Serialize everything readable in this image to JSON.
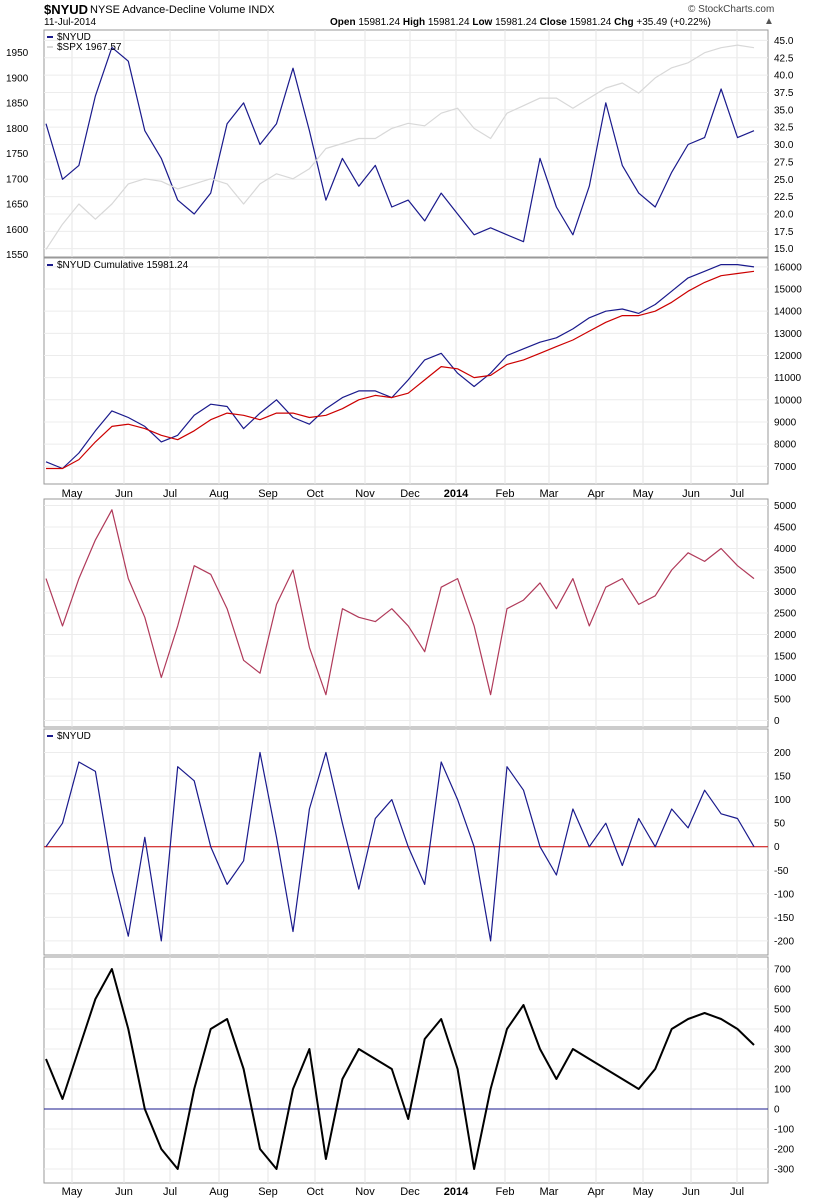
{
  "header": {
    "symbol": "$NYUD",
    "description": "NYSE Advance-Decline Volume INDX",
    "date": "11-Jul-2014",
    "open_label": "Open",
    "open": "15981.24",
    "high_label": "High",
    "high": "15981.24",
    "low_label": "Low",
    "low": "15981.24",
    "close_label": "Close",
    "close": "15981.24",
    "chg_label": "Chg",
    "chg": "+35.49 (+0.22%)",
    "brand": "© StockCharts.com"
  },
  "xaxis": {
    "labels": [
      "May",
      "Jun",
      "Jul",
      "Aug",
      "Sep",
      "Oct",
      "Nov",
      "Dec",
      "2014",
      "Feb",
      "Mar",
      "Apr",
      "May",
      "Jun",
      "Jul"
    ],
    "bold": "2014"
  },
  "chart_data": [
    {
      "type": "line",
      "panel": "price",
      "legend": [
        "$NYUD",
        "$SPX 1967.57"
      ],
      "left_axis": [
        1550,
        1600,
        1650,
        1700,
        1750,
        1800,
        1850,
        1900,
        1950
      ],
      "right_axis": [
        15.0,
        17.5,
        20.0,
        22.5,
        25.0,
        27.5,
        30.0,
        32.5,
        35.0,
        37.5,
        40.0,
        42.5,
        45.0
      ],
      "series": [
        {
          "name": "$NYUD",
          "color": "#1a1a8c",
          "axis": "right",
          "values": [
            33,
            25,
            27,
            37,
            44,
            42,
            32,
            28,
            22,
            20,
            23,
            33,
            36,
            30,
            33,
            41,
            32,
            22,
            28,
            24,
            27,
            21,
            22,
            19,
            23,
            20,
            17,
            18,
            17,
            16,
            28,
            21,
            17,
            24,
            36,
            27,
            23,
            21,
            26,
            30,
            31,
            38,
            31,
            32
          ]
        },
        {
          "name": "$SPX",
          "color": "#d8d8d8",
          "axis": "left",
          "values": [
            1560,
            1610,
            1650,
            1620,
            1650,
            1690,
            1700,
            1695,
            1680,
            1690,
            1700,
            1690,
            1650,
            1690,
            1710,
            1700,
            1720,
            1760,
            1770,
            1780,
            1780,
            1800,
            1810,
            1805,
            1830,
            1840,
            1800,
            1780,
            1830,
            1845,
            1860,
            1860,
            1840,
            1860,
            1880,
            1890,
            1870,
            1900,
            1920,
            1930,
            1950,
            1960,
            1965,
            1960
          ]
        }
      ]
    },
    {
      "type": "line",
      "panel": "cumulative",
      "legend": [
        "$NYUD Cumulative 15981.24"
      ],
      "right_axis": [
        7000,
        8000,
        9000,
        10000,
        11000,
        12000,
        13000,
        14000,
        15000,
        16000
      ],
      "series": [
        {
          "name": "$NYUD Cumulative",
          "color": "#1a1a8c",
          "values": [
            7200,
            6900,
            7600,
            8600,
            9500,
            9200,
            8800,
            8100,
            8400,
            9300,
            9800,
            9700,
            8700,
            9400,
            10000,
            9200,
            8900,
            9600,
            10100,
            10400,
            10400,
            10100,
            10900,
            11800,
            12100,
            11200,
            10600,
            11200,
            12000,
            12300,
            12600,
            12800,
            13200,
            13700,
            14000,
            14100,
            13900,
            14300,
            14900,
            15500,
            15800,
            16100,
            16100,
            16000
          ]
        },
        {
          "name": "",
          "color": "#cc0000",
          "values": [
            6900,
            6900,
            7300,
            8100,
            8800,
            8900,
            8700,
            8400,
            8200,
            8600,
            9100,
            9400,
            9300,
            9100,
            9400,
            9400,
            9200,
            9300,
            9600,
            10000,
            10200,
            10100,
            10300,
            10900,
            11500,
            11400,
            11000,
            11100,
            11600,
            11800,
            12100,
            12400,
            12700,
            13100,
            13500,
            13800,
            13800,
            14000,
            14400,
            14900,
            15300,
            15600,
            15700,
            15800
          ]
        }
      ]
    },
    {
      "type": "line",
      "panel": "volume",
      "right_axis": [
        0,
        500,
        1000,
        1500,
        2000,
        2500,
        3000,
        3500,
        4000,
        4500,
        5000
      ],
      "series": [
        {
          "name": "",
          "color": "#b03a5a",
          "values": [
            3300,
            2200,
            3300,
            4200,
            4900,
            3300,
            2400,
            1000,
            2200,
            3600,
            3400,
            2600,
            1400,
            1100,
            2700,
            3500,
            1700,
            600,
            2600,
            2400,
            2300,
            2600,
            2200,
            1600,
            3100,
            3300,
            2200,
            600,
            2600,
            2800,
            3200,
            2600,
            3300,
            2200,
            3100,
            3300,
            2700,
            2900,
            3500,
            3900,
            3700,
            4000,
            3600,
            3300
          ]
        }
      ]
    },
    {
      "type": "line",
      "panel": "oscillator",
      "legend": [
        "$NYUD"
      ],
      "right_axis": [
        -200,
        -150,
        -100,
        -50,
        0,
        50,
        100,
        150,
        200
      ],
      "zero_color": "#cc0000",
      "series": [
        {
          "name": "$NYUD",
          "color": "#1a1a8c",
          "values": [
            0,
            50,
            180,
            160,
            -50,
            -190,
            20,
            -200,
            170,
            140,
            0,
            -80,
            -30,
            200,
            20,
            -180,
            80,
            200,
            50,
            -90,
            60,
            100,
            0,
            -80,
            180,
            100,
            0,
            -200,
            170,
            120,
            0,
            -60,
            80,
            0,
            50,
            -40,
            60,
            0,
            80,
            40,
            120,
            70,
            60,
            0
          ]
        }
      ]
    },
    {
      "type": "line",
      "panel": "momentum",
      "right_axis": [
        -300,
        -200,
        -100,
        0,
        100,
        200,
        300,
        400,
        500,
        600,
        700
      ],
      "zero_color": "#1a1a8c",
      "series": [
        {
          "name": "",
          "color": "#000000",
          "values": [
            250,
            50,
            300,
            550,
            700,
            400,
            0,
            -200,
            -300,
            100,
            400,
            450,
            200,
            -200,
            -300,
            100,
            300,
            -250,
            150,
            300,
            250,
            200,
            -50,
            350,
            450,
            200,
            -300,
            100,
            400,
            520,
            300,
            150,
            300,
            250,
            200,
            150,
            100,
            200,
            400,
            450,
            480,
            450,
            400,
            320
          ]
        }
      ]
    }
  ]
}
